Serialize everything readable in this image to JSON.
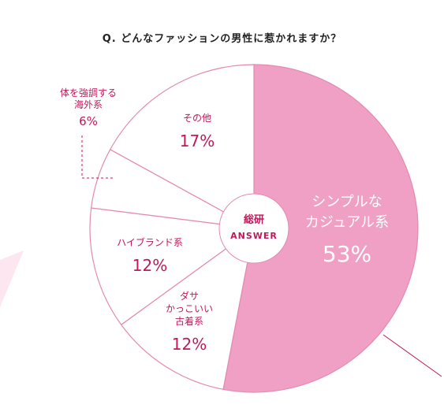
{
  "chart_data": {
    "type": "pie",
    "title": "Q. どんなファッションの男性に惹かれますか？",
    "center_label": {
      "line1": "総研",
      "line2": "ANSWER"
    },
    "slices": [
      {
        "label_lines": [
          "シンプルな",
          "カジュアル系"
        ],
        "value": 53,
        "display": "53%",
        "fill": "#f0a0c4",
        "text_color": "#ffffff"
      },
      {
        "label_lines": [
          "ダサ",
          "かっこいい",
          "古着系"
        ],
        "value": 12,
        "display": "12%",
        "fill": "#ffffff",
        "text_color": "#c2185b"
      },
      {
        "label_lines": [
          "ハイブランド系"
        ],
        "value": 12,
        "display": "12%",
        "fill": "#ffffff",
        "text_color": "#c2185b"
      },
      {
        "label_lines": [
          "体を強調する",
          "海外系"
        ],
        "value": 6,
        "display": "6%",
        "fill": "#ffffff",
        "text_color": "#c2185b"
      },
      {
        "label_lines": [
          "その他"
        ],
        "value": 17,
        "display": "17%",
        "fill": "#ffffff",
        "text_color": "#c2185b"
      }
    ]
  },
  "colors": {
    "accent": "#c2185b",
    "highlight_fill": "#f0a0c4",
    "outline": "#e48ab0",
    "decor": "#fde6ef"
  }
}
